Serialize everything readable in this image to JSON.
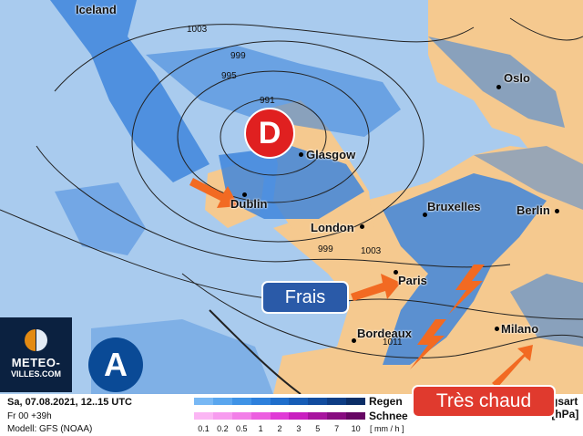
{
  "map": {
    "cities": [
      {
        "name": "Iceland"
      },
      {
        "name": "Oslo"
      },
      {
        "name": "Glasgow"
      },
      {
        "name": "Dublin"
      },
      {
        "name": "London"
      },
      {
        "name": "Bruxelles"
      },
      {
        "name": "Berlin"
      },
      {
        "name": "Paris"
      },
      {
        "name": "Bordeaux"
      },
      {
        "name": "Milano"
      }
    ],
    "isobars": [
      "1003",
      "999",
      "995",
      "991",
      "999",
      "1003",
      "1011"
    ],
    "low_label": "D",
    "high_label": "A",
    "callouts": {
      "cool": "Frais",
      "hot": "Très chaud"
    },
    "colors": {
      "sea": "#a9cbee",
      "land": "#f5c98f",
      "rain": "#3f86dc",
      "low": "#e02020",
      "high": "#0a4a96",
      "cool": "#2a5aa8",
      "hot": "#e03a2e",
      "arrow": "#f26a22"
    }
  },
  "logo": {
    "line1": "METEO-",
    "line2": "VILLES.COM"
  },
  "legend": {
    "date": "Sa, 07.08.2021, 12..15 UTC",
    "run": "Fr 00 +39h",
    "model": "Modell: GFS (NOAA)",
    "rain_label": "Regen",
    "snow_label": "Schnee",
    "unit": "[ mm / h ]",
    "ticks": [
      "0.1",
      "0.2",
      "0.5",
      "1",
      "2",
      "3",
      "5",
      "7",
      "10"
    ],
    "rain_colors": [
      "#78b8f4",
      "#5aa6ee",
      "#3f93e6",
      "#2d80dc",
      "#1f6ecb",
      "#175db6",
      "#124c9e",
      "#0e3d84",
      "#0b2e66"
    ],
    "snow_colors": [
      "#fbb6f4",
      "#f79cef",
      "#f27fe8",
      "#ec5fe0",
      "#e03ad6",
      "#c91fc0",
      "#a8149f",
      "#870c80",
      "#660663"
    ],
    "right1": "gsart",
    "right2": "Bodendruck [hPa]"
  }
}
